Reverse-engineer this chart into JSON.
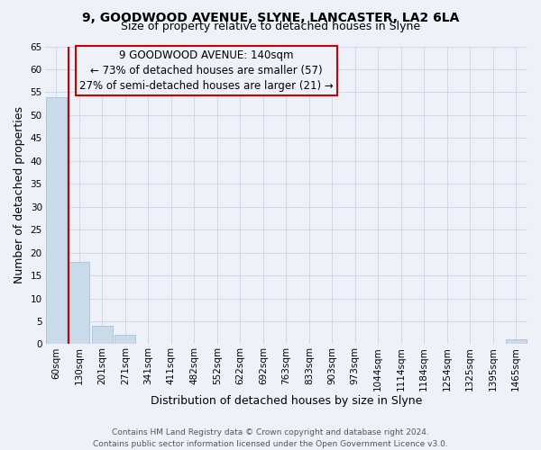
{
  "title1": "9, GOODWOOD AVENUE, SLYNE, LANCASTER, LA2 6LA",
  "title2": "Size of property relative to detached houses in Slyne",
  "xlabel": "Distribution of detached houses by size in Slyne",
  "ylabel": "Number of detached properties",
  "bar_labels": [
    "60sqm",
    "130sqm",
    "201sqm",
    "271sqm",
    "341sqm",
    "411sqm",
    "482sqm",
    "552sqm",
    "622sqm",
    "692sqm",
    "763sqm",
    "833sqm",
    "903sqm",
    "973sqm",
    "1044sqm",
    "1114sqm",
    "1184sqm",
    "1254sqm",
    "1325sqm",
    "1395sqm",
    "1465sqm"
  ],
  "bar_values": [
    54,
    18,
    4,
    2,
    0,
    0,
    0,
    0,
    0,
    0,
    0,
    0,
    0,
    0,
    0,
    0,
    0,
    0,
    0,
    0,
    1
  ],
  "bar_color": "#c9daea",
  "bar_edgecolor": "#a8bfd0",
  "grid_color": "#cdd8e8",
  "background_color": "#eef2f8",
  "annotation_box_color": "#cc0000",
  "vline_color": "#cc0000",
  "annotation_line1": "9 GOODWOOD AVENUE: 140sqm",
  "annotation_line2": "← 73% of detached houses are smaller (57)",
  "annotation_line3": "27% of semi-detached houses are larger (21) →",
  "ylim": [
    0,
    65
  ],
  "yticks": [
    0,
    5,
    10,
    15,
    20,
    25,
    30,
    35,
    40,
    45,
    50,
    55,
    60,
    65
  ],
  "footer1": "Contains HM Land Registry data © Crown copyright and database right 2024.",
  "footer2": "Contains public sector information licensed under the Open Government Licence v3.0.",
  "title1_fontsize": 10,
  "title2_fontsize": 9,
  "axis_label_fontsize": 9,
  "tick_fontsize": 7.5,
  "annotation_fontsize": 8.5,
  "footer_fontsize": 6.5
}
